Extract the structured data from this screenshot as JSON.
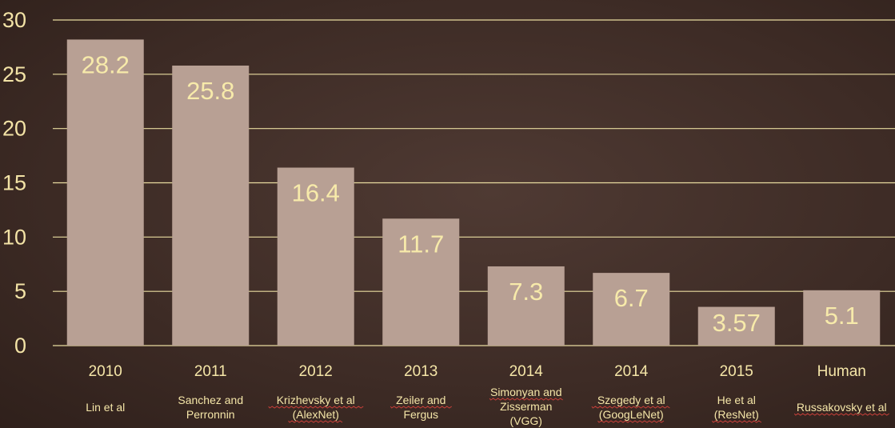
{
  "chart_data": {
    "type": "bar",
    "categories": [
      "2010",
      "2011",
      "2012",
      "2013",
      "2014",
      "2014",
      "2015",
      "Human"
    ],
    "subtitles": [
      [
        "Lin et al"
      ],
      [
        "Sanchez and",
        "Perronnin"
      ],
      [
        "Krizhevsky et al",
        "(AlexNet)"
      ],
      [
        "Zeiler and",
        "Fergus"
      ],
      [
        "Simonyan and",
        "Zisserman",
        "(VGG)"
      ],
      [
        "Szegedy et al",
        "(GoogLeNet)"
      ],
      [
        "He et al",
        "(ResNet)"
      ],
      [
        "Russakovsky et al"
      ]
    ],
    "values": [
      28.2,
      25.8,
      16.4,
      11.7,
      7.3,
      6.7,
      3.57,
      5.1
    ],
    "value_labels": [
      "28.2",
      "25.8",
      "16.4",
      "11.7",
      "7.3",
      "6.7",
      "3.57",
      "5.1"
    ],
    "yticks": [
      "0",
      "5",
      "10",
      "15",
      "20",
      "25",
      "30"
    ],
    "ylim": [
      0,
      30
    ],
    "grid": true,
    "colors": {
      "bar": "#b8a094",
      "text": "#f3e3a6",
      "grid": "#e9dca0",
      "background": "#3d2b25"
    }
  }
}
